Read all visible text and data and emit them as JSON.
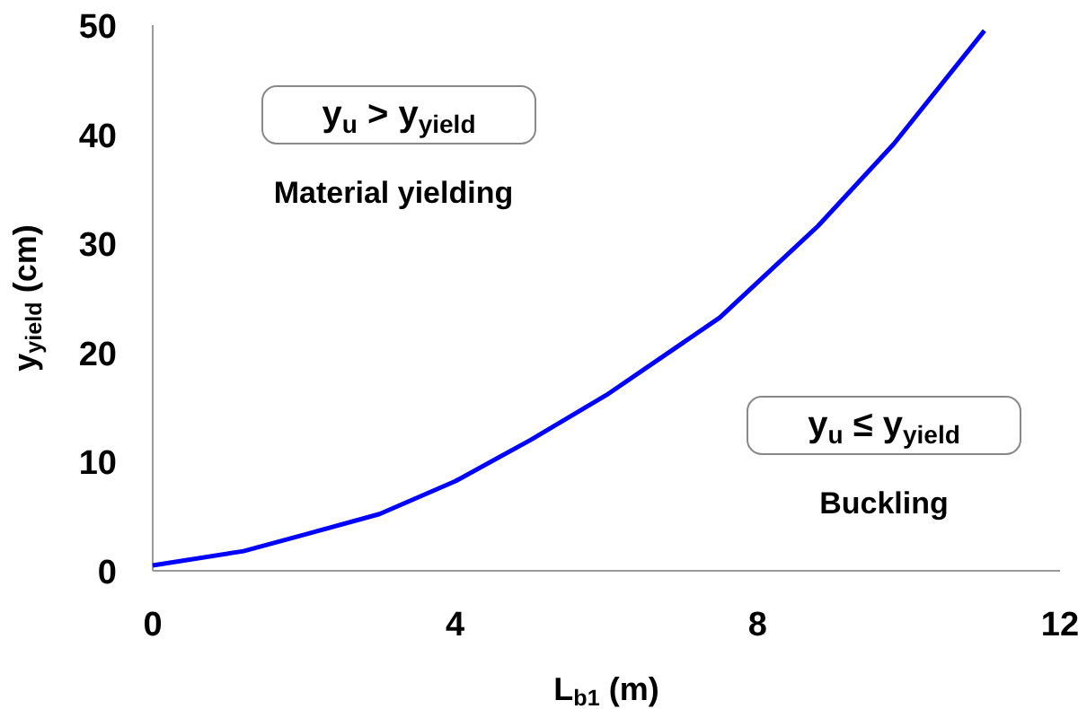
{
  "chart_data": {
    "type": "line",
    "xlabel": "L$_{b1}$ (m)",
    "ylabel": "y$_{yield}$ (cm)",
    "xlim": [
      0,
      12
    ],
    "ylim": [
      0,
      50
    ],
    "xticks": [
      0,
      4,
      8,
      12
    ],
    "yticks": [
      0,
      10,
      20,
      30,
      40,
      50
    ],
    "annotations": [
      "y$_{u}$ > y$_{yield}$",
      "Material yielding",
      "y$_{u}$ ≤ y$_{yield}$",
      "Buckling"
    ],
    "series": [
      {
        "color": "#0000ff",
        "x": [
          0,
          1.2,
          2,
          3,
          4,
          5,
          6,
          7.5,
          8.8,
          9.8,
          11
        ],
        "values": [
          0.5,
          1.8,
          3.3,
          5.2,
          8.2,
          12,
          16.1,
          23.2,
          31.6,
          39.1,
          49.5
        ]
      }
    ]
  }
}
